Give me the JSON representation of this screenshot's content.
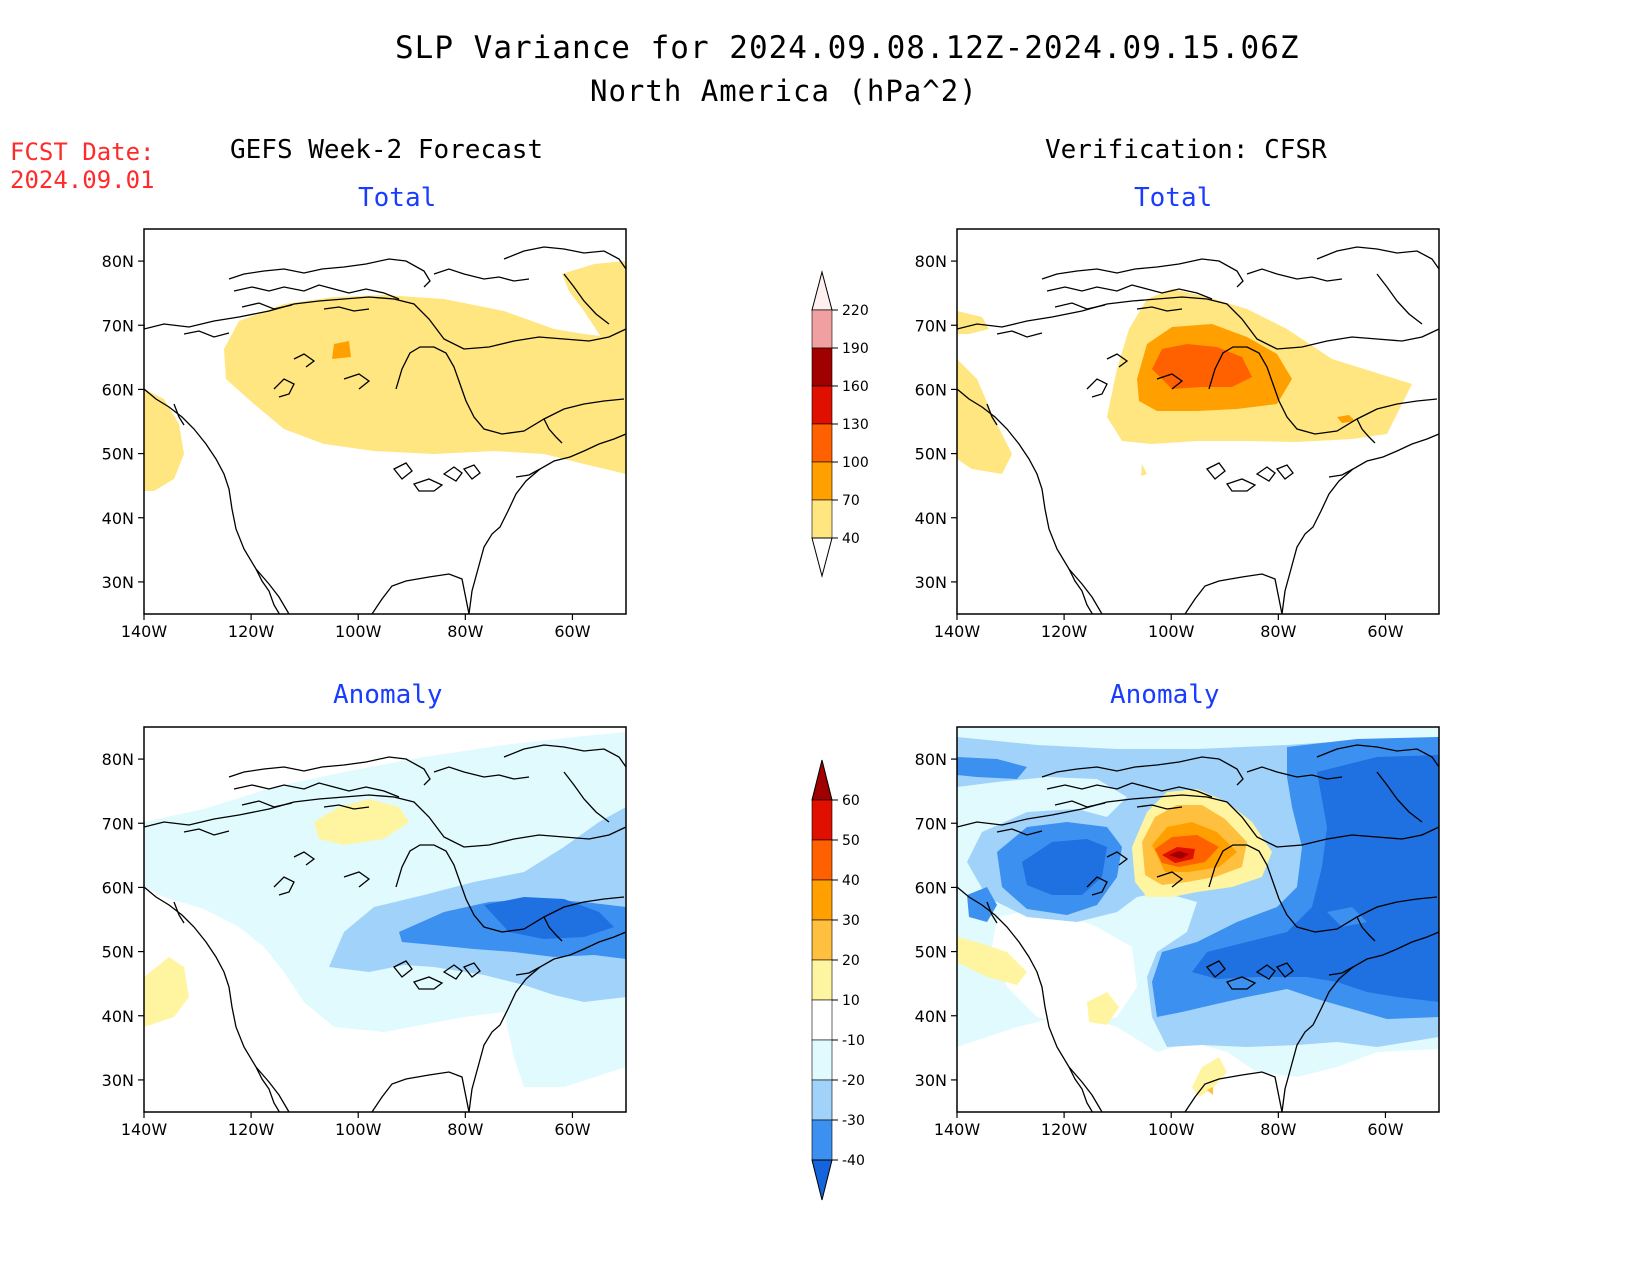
{
  "header": {
    "title": "SLP Variance for 2024.09.08.12Z-2024.09.15.06Z",
    "subtitle": "North America (hPa^2)"
  },
  "fcst": {
    "label": "FCST Date:",
    "date": "2024.09.01"
  },
  "columns": {
    "left": "GEFS Week-2 Forecast",
    "right": "Verification: CFSR"
  },
  "panels": {
    "top_left": {
      "title": "Total"
    },
    "top_right": {
      "title": "Total"
    },
    "bottom_left": {
      "title": "Anomaly"
    },
    "bottom_right": {
      "title": "Anomaly"
    }
  },
  "axes": {
    "lat_ticks": [
      "80N",
      "70N",
      "60N",
      "50N",
      "40N",
      "30N"
    ],
    "lon_ticks": [
      "140W",
      "120W",
      "100W",
      "80W",
      "60W"
    ],
    "lat_range": [
      25,
      85
    ],
    "lon_range": [
      -140,
      -50
    ]
  },
  "colorbars": {
    "total": {
      "labels": [
        "40",
        "70",
        "100",
        "130",
        "160",
        "190",
        "220"
      ],
      "colors": [
        "#ffe680",
        "#ffa000",
        "#ff6000",
        "#e01000",
        "#a00000",
        "#f0a0a0",
        "#ffe0e0"
      ]
    },
    "anomaly": {
      "labels": [
        "-40",
        "-30",
        "-20",
        "-10",
        "10",
        "20",
        "30",
        "40",
        "50",
        "60"
      ],
      "colors": [
        "#1464dc",
        "#3c90f0",
        "#a0d2fa",
        "#e0fafe",
        "#ffffff",
        "#fff5a0",
        "#ffc040",
        "#ffa000",
        "#ff6000",
        "#e01000",
        "#a00000"
      ]
    }
  }
}
